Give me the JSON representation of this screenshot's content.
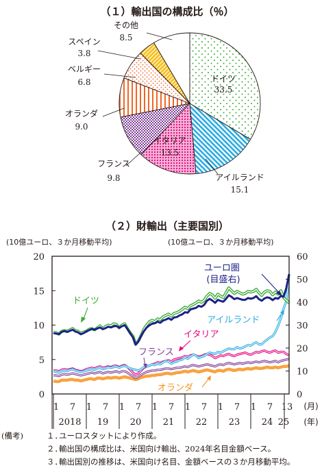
{
  "chart_data": [
    {
      "type": "pie",
      "title": "（１）輸出国の構成比（％）",
      "slices": [
        {
          "label": "ドイツ",
          "value": 33.5,
          "value_text": "33.5",
          "color": "#5cb85c",
          "pattern": "dots"
        },
        {
          "label": "アイルランド",
          "value": 15.1,
          "value_text": "15.1",
          "color": "#29abe2",
          "pattern": "diagonal"
        },
        {
          "label": "イタリア",
          "value": 13.5,
          "value_text": "13.5",
          "color": "#e4007f",
          "pattern": "dense-dots"
        },
        {
          "label": "フランス",
          "value": 9.8,
          "value_text": "9.8",
          "color": "#7f3f98",
          "pattern": "checker"
        },
        {
          "label": "オランダ",
          "value": 9.0,
          "value_text": "9.0",
          "color": "#f26522",
          "pattern": "vertical"
        },
        {
          "label": "ベルギー",
          "value": 6.8,
          "value_text": "6.8",
          "color": "#f26522",
          "pattern": "sparse-dots"
        },
        {
          "label": "スペイン",
          "value": 3.8,
          "value_text": "3.8",
          "color": "#f7b500",
          "pattern": "stripes"
        },
        {
          "label": "その他",
          "value": 8.5,
          "value_text": "8.5",
          "color": "#ffffff",
          "pattern": "none"
        }
      ]
    },
    {
      "type": "line",
      "title": "（２）財輸出（主要国別）",
      "ylabel_left": "(10億ユーロ、３か月移動平均)",
      "ylabel_right": "(10億ユーロ、３か月移動平均)",
      "ylim_left": [
        0,
        20
      ],
      "ylim_right": [
        0,
        60
      ],
      "yticks_left": [
        "0",
        "5",
        "10",
        "15",
        "20"
      ],
      "yticks_right": [
        "0",
        "10",
        "20",
        "30",
        "40",
        "50",
        "60"
      ],
      "x_start": "2018-01",
      "x_end": "2025-01",
      "xticks_month": [
        "1",
        "7",
        "1",
        "7",
        "1",
        "7",
        "1",
        "7",
        "1",
        "7",
        "1",
        "7",
        "1",
        "7",
        "1"
      ],
      "xticks_year": [
        "2018",
        "19",
        "20",
        "21",
        "22",
        "23",
        "24",
        "25"
      ],
      "x_unit_month": "(月)",
      "x_unit_year": "(年)",
      "last_month_label": "13",
      "series": [
        {
          "name": "ドイツ",
          "axis": "left",
          "color": "#3aaa35",
          "values": [
            9.0,
            8.9,
            8.7,
            9.1,
            9.2,
            9.1,
            9.3,
            9.5,
            9.2,
            9.1,
            8.8,
            9.0,
            9.1,
            9.4,
            9.5,
            9.3,
            9.6,
            9.9,
            9.5,
            9.8,
            10.0,
            9.9,
            10.2,
            10.1,
            9.6,
            10.0,
            10.2,
            9.5,
            8.9,
            8.4,
            7.2,
            7.7,
            8.5,
            9.4,
            10.0,
            10.5,
            10.7,
            10.5,
            10.9,
            10.8,
            11.2,
            11.4,
            11.6,
            11.3,
            11.7,
            11.8,
            12.0,
            12.3,
            12.6,
            12.4,
            12.8,
            13.0,
            13.2,
            13.5,
            13.3,
            13.6,
            14.2,
            14.6,
            14.4,
            13.9,
            14.5,
            14.2,
            14.0,
            14.7,
            15.4,
            15.0,
            14.6,
            14.9,
            14.7,
            14.5,
            14.6,
            14.9,
            14.8,
            14.9,
            15.2,
            14.7,
            14.3,
            14.8,
            15.0,
            14.9,
            14.4,
            14.8,
            14.5,
            15.0,
            14.0,
            13.6,
            13.2
          ]
        },
        {
          "name": "ユーロ圏\n(目盛右)",
          "axis": "right",
          "color": "#1d2088",
          "values": [
            26.5,
            26.3,
            26.0,
            27.0,
            27.4,
            27.0,
            27.5,
            28.0,
            27.2,
            26.8,
            26.0,
            26.5,
            27.2,
            27.8,
            28.3,
            28.0,
            28.5,
            29.0,
            28.2,
            28.7,
            29.3,
            29.0,
            29.5,
            29.6,
            28.8,
            29.5,
            30.0,
            28.3,
            26.4,
            24.7,
            21.5,
            22.8,
            25.2,
            27.3,
            28.9,
            29.9,
            30.6,
            30.8,
            31.5,
            31.0,
            32.0,
            32.4,
            33.0,
            32.3,
            33.3,
            33.5,
            34.2,
            34.7,
            35.6,
            35.4,
            36.8,
            37.2,
            37.5,
            38.4,
            38.0,
            38.8,
            40.6,
            41.4,
            40.7,
            39.7,
            41.0,
            40.5,
            40.2,
            41.5,
            43.0,
            42.3,
            41.3,
            41.8,
            41.4,
            41.0,
            41.0,
            41.8,
            41.5,
            41.8,
            42.6,
            41.3,
            40.6,
            41.6,
            42.1,
            41.8,
            40.9,
            41.8,
            41.5,
            42.7,
            42.4,
            46.2,
            52.2
          ]
        },
        {
          "name": "アイルランド",
          "axis": "left",
          "color": "#29abe2",
          "values": [
            3.3,
            3.2,
            3.1,
            3.3,
            3.4,
            3.3,
            3.5,
            3.6,
            3.4,
            3.3,
            3.2,
            3.3,
            3.4,
            3.5,
            3.6,
            3.5,
            3.7,
            3.8,
            3.6,
            3.7,
            3.9,
            3.8,
            3.9,
            4.0,
            3.8,
            4.0,
            4.1,
            3.9,
            3.7,
            3.6,
            3.5,
            3.4,
            3.6,
            3.9,
            4.0,
            4.1,
            4.3,
            4.2,
            4.4,
            4.3,
            4.6,
            4.8,
            4.7,
            4.4,
            4.6,
            4.7,
            4.9,
            5.0,
            5.3,
            5.1,
            5.4,
            5.7,
            5.6,
            5.2,
            5.4,
            5.5,
            5.8,
            6.0,
            5.9,
            5.8,
            6.1,
            6.0,
            6.2,
            6.4,
            6.6,
            6.5,
            6.5,
            6.8,
            6.6,
            6.7,
            6.9,
            7.1,
            7.0,
            7.3,
            7.5,
            7.2,
            7.2,
            7.6,
            7.9,
            8.2,
            8.4,
            9.0,
            9.9,
            11.0,
            12.4,
            13.5,
            17.3
          ]
        },
        {
          "name": "イタリア",
          "axis": "left",
          "color": "#e4007f",
          "values": [
            3.4,
            3.4,
            3.3,
            3.5,
            3.6,
            3.5,
            3.6,
            3.7,
            3.5,
            3.4,
            3.3,
            3.4,
            3.6,
            3.7,
            3.8,
            3.7,
            3.9,
            4.0,
            3.8,
            3.9,
            4.0,
            3.9,
            4.1,
            4.1,
            3.9,
            4.1,
            4.2,
            3.9,
            3.5,
            3.1,
            2.8,
            3.0,
            3.4,
            3.8,
            4.0,
            4.1,
            4.3,
            4.4,
            4.6,
            4.5,
            4.7,
            4.8,
            4.9,
            4.7,
            5.0,
            5.1,
            5.2,
            5.3,
            5.5,
            5.4,
            5.6,
            5.7,
            5.6,
            5.4,
            5.5,
            5.7,
            5.8,
            5.7,
            5.5,
            5.2,
            5.4,
            5.6,
            5.5,
            5.7,
            5.8,
            5.6,
            5.5,
            5.7,
            5.8,
            5.9,
            6.0,
            5.8,
            5.7,
            5.9,
            6.1,
            6.0,
            6.2,
            6.3,
            6.1,
            6.0,
            6.2,
            6.3,
            6.0,
            6.1,
            6.1,
            5.8,
            5.6
          ]
        },
        {
          "name": "フランス",
          "axis": "left",
          "color": "#7f3f98",
          "values": [
            2.7,
            2.7,
            2.6,
            2.8,
            2.9,
            2.8,
            2.9,
            3.0,
            2.9,
            2.8,
            2.7,
            2.8,
            2.9,
            3.0,
            3.1,
            3.0,
            3.1,
            3.2,
            3.0,
            3.1,
            3.2,
            3.1,
            3.2,
            3.3,
            3.1,
            3.3,
            3.3,
            3.1,
            2.8,
            2.6,
            2.3,
            2.5,
            2.8,
            3.0,
            3.2,
            3.3,
            3.4,
            3.4,
            3.5,
            3.5,
            3.6,
            3.7,
            3.7,
            3.6,
            3.7,
            3.8,
            3.8,
            3.9,
            4.0,
            3.9,
            4.1,
            4.2,
            4.1,
            4.0,
            4.1,
            4.2,
            4.3,
            4.2,
            4.1,
            4.0,
            4.2,
            4.3,
            4.2,
            4.4,
            4.5,
            4.4,
            4.3,
            4.4,
            4.5,
            4.4,
            4.5,
            4.6,
            4.5,
            4.6,
            4.7,
            4.6,
            4.7,
            4.8,
            4.7,
            4.6,
            4.7,
            4.8,
            4.6,
            4.8,
            4.9,
            5.0,
            5.1
          ]
        },
        {
          "name": "オランダ",
          "axis": "left",
          "color": "#f7931e",
          "values": [
            1.9,
            1.8,
            1.8,
            2.0,
            2.0,
            2.0,
            2.1,
            2.1,
            2.0,
            2.0,
            1.9,
            2.0,
            2.1,
            2.2,
            2.2,
            2.1,
            2.3,
            2.3,
            2.2,
            2.3,
            2.4,
            2.3,
            2.4,
            2.4,
            2.3,
            2.4,
            2.5,
            2.4,
            2.3,
            2.2,
            2.1,
            2.2,
            2.4,
            2.5,
            2.6,
            2.6,
            2.7,
            2.7,
            2.8,
            2.8,
            2.9,
            3.0,
            3.0,
            2.9,
            3.0,
            3.1,
            3.1,
            3.2,
            3.3,
            3.2,
            3.3,
            3.4,
            3.3,
            3.2,
            3.3,
            3.4,
            3.5,
            3.4,
            3.3,
            3.2,
            3.4,
            3.4,
            3.3,
            3.5,
            3.6,
            3.5,
            3.4,
            3.5,
            3.6,
            3.5,
            3.6,
            3.7,
            3.6,
            3.7,
            3.8,
            3.7,
            3.7,
            3.8,
            3.9,
            3.8,
            3.8,
            3.9,
            3.8,
            3.9,
            4.0,
            4.0,
            4.1
          ]
        }
      ]
    }
  ],
  "notes": {
    "header": "(備考)",
    "items": [
      {
        "num": "１．",
        "text": "ユーロスタットにより作成。"
      },
      {
        "num": "２．",
        "text": "輸出国の構成比は、米国向け輸出、2024年名目金額ベース。"
      },
      {
        "num": "３．",
        "text": "輸出国別の推移は、米国向け名目、金額ベースの３か月移動平均。"
      }
    ]
  }
}
